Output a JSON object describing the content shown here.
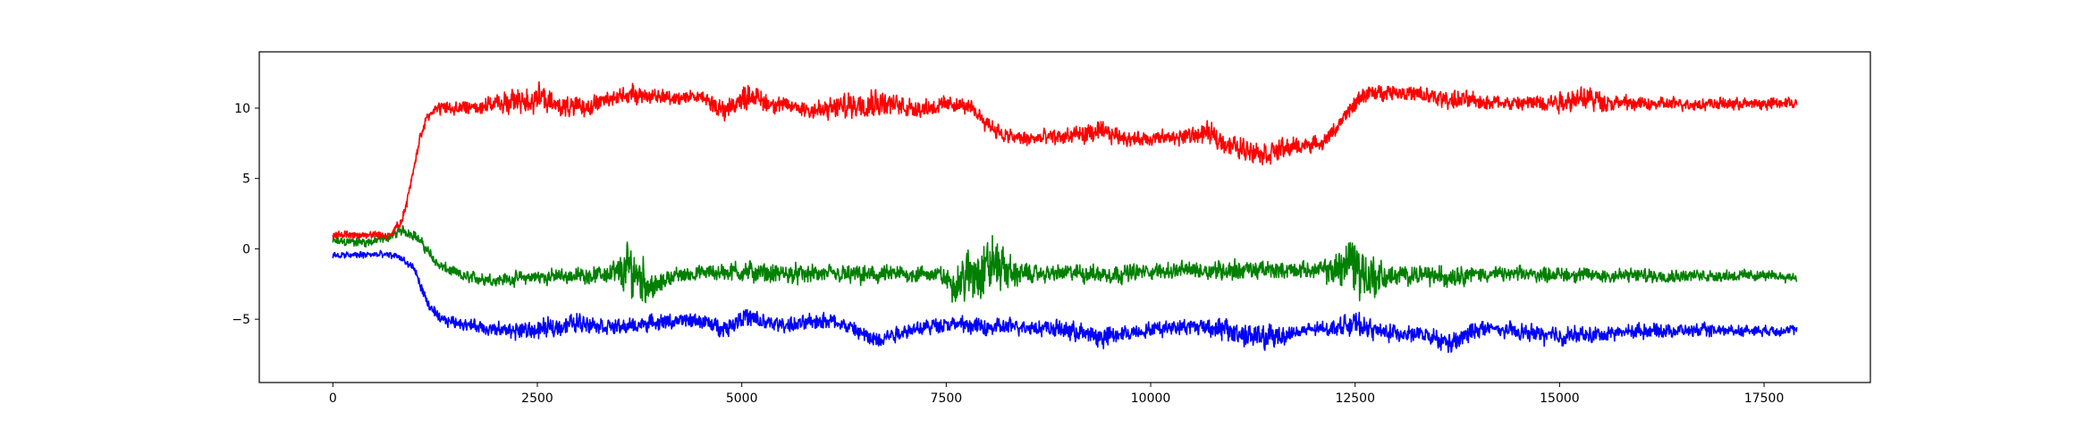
{
  "chart_data": {
    "type": "line",
    "title": "",
    "xlabel": "",
    "ylabel": "",
    "xlim": [
      -900,
      18800
    ],
    "ylim": [
      -9.5,
      14
    ],
    "xticks": [
      0,
      2500,
      5000,
      7500,
      10000,
      12500,
      15000,
      17500
    ],
    "xtick_labels": [
      "0",
      "2500",
      "5000",
      "7500",
      "10000",
      "12500",
      "15000",
      "17500"
    ],
    "yticks": [
      -5,
      0,
      5,
      10
    ],
    "ytick_labels": [
      "−5",
      "0",
      "5",
      "10"
    ],
    "grid": false,
    "legend": "none",
    "series": [
      {
        "color": "#ff0000",
        "x": [
          0,
          400,
          700,
          850,
          950,
          1050,
          1150,
          1300,
          1600,
          2000,
          2300,
          2500,
          2700,
          3000,
          3300,
          3600,
          4000,
          4500,
          4800,
          5100,
          5300,
          5600,
          6000,
          6300,
          6600,
          6900,
          7200,
          7600,
          7800,
          8000,
          8200,
          8500,
          9000,
          9400,
          9800,
          10300,
          10700,
          11000,
          11400,
          11800,
          12100,
          12300,
          12600,
          13000,
          13500,
          14000,
          14500,
          15000,
          15300,
          15600,
          16000,
          16500,
          17000,
          17500,
          17900
        ],
        "values": [
          1.0,
          1.0,
          1.0,
          2.0,
          4.5,
          7.5,
          9.5,
          10.0,
          10.0,
          10.3,
          10.5,
          10.8,
          10.2,
          10.0,
          10.5,
          11.0,
          10.8,
          10.8,
          9.8,
          11.0,
          10.4,
          10.1,
          9.8,
          10.2,
          10.5,
          10.2,
          10.0,
          10.3,
          10.0,
          9.0,
          8.0,
          7.8,
          8.0,
          8.3,
          7.8,
          7.9,
          8.2,
          7.3,
          6.8,
          7.3,
          7.5,
          8.8,
          11.0,
          11.2,
          10.7,
          10.5,
          10.3,
          10.5,
          10.8,
          10.4,
          10.3,
          10.3,
          10.3,
          10.3,
          10.4
        ],
        "noise": [
          0.35,
          0.35,
          0.35,
          0.4,
          0.4,
          0.4,
          0.5,
          0.55,
          0.6,
          0.7,
          1.1,
          1.3,
          0.8,
          0.8,
          0.7,
          0.8,
          0.6,
          0.6,
          0.9,
          1.0,
          0.8,
          0.6,
          0.9,
          1.1,
          1.2,
          0.9,
          0.8,
          0.6,
          0.6,
          0.7,
          0.7,
          0.6,
          0.8,
          0.8,
          0.6,
          0.6,
          0.9,
          0.9,
          1.0,
          0.7,
          0.5,
          0.6,
          0.7,
          0.6,
          0.8,
          0.7,
          0.6,
          0.9,
          1.0,
          0.7,
          0.5,
          0.5,
          0.5,
          0.5,
          0.5
        ]
      },
      {
        "color": "#008000",
        "x": [
          0,
          500,
          700,
          850,
          1000,
          1100,
          1300,
          1600,
          2000,
          2500,
          3000,
          3300,
          3500,
          3650,
          3800,
          3950,
          4100,
          4500,
          5000,
          5400,
          6000,
          6500,
          7000,
          7400,
          7600,
          7850,
          8100,
          8300,
          8600,
          9000,
          9500,
          10000,
          10500,
          11000,
          11500,
          12000,
          12200,
          12450,
          12650,
          12900,
          13200,
          13600,
          13800,
          14000,
          14500,
          15000,
          15500,
          16000,
          16500,
          17000,
          17500,
          17900
        ],
        "values": [
          0.5,
          0.5,
          0.9,
          1.3,
          1.0,
          0.3,
          -1.2,
          -2.0,
          -2.2,
          -2.0,
          -1.9,
          -1.8,
          -1.8,
          -1.4,
          -2.2,
          -2.8,
          -2.0,
          -1.7,
          -1.6,
          -1.8,
          -1.8,
          -1.9,
          -1.8,
          -1.8,
          -2.5,
          -1.6,
          -1.0,
          -1.7,
          -1.8,
          -1.7,
          -1.8,
          -1.6,
          -1.5,
          -1.5,
          -1.5,
          -1.5,
          -1.6,
          -0.8,
          -2.0,
          -2.0,
          -1.8,
          -2.0,
          -1.8,
          -1.8,
          -1.8,
          -1.8,
          -1.9,
          -1.9,
          -1.9,
          -1.9,
          -1.9,
          -2.0
        ],
        "noise": [
          0.4,
          0.4,
          0.4,
          0.4,
          0.4,
          0.4,
          0.45,
          0.5,
          0.5,
          0.6,
          0.6,
          0.6,
          1.4,
          2.6,
          1.8,
          0.9,
          0.6,
          0.6,
          0.9,
          0.8,
          0.7,
          0.8,
          0.7,
          0.6,
          1.3,
          2.6,
          2.4,
          1.2,
          0.6,
          0.7,
          0.8,
          0.6,
          0.7,
          0.9,
          0.7,
          0.6,
          1.1,
          2.6,
          2.2,
          0.9,
          0.7,
          0.9,
          0.8,
          0.6,
          0.6,
          0.6,
          0.6,
          0.6,
          0.5,
          0.5,
          0.4,
          0.4
        ]
      },
      {
        "color": "#0000ff",
        "x": [
          0,
          500,
          800,
          1000,
          1150,
          1300,
          1600,
          2000,
          2500,
          3000,
          3500,
          4000,
          4500,
          4800,
          5000,
          5300,
          5700,
          6000,
          6300,
          6600,
          7000,
          7500,
          8000,
          8500,
          9000,
          9400,
          9800,
          10300,
          10700,
          11000,
          11400,
          11800,
          12200,
          12500,
          12800,
          13300,
          13700,
          14000,
          14500,
          15000,
          15500,
          16000,
          16500,
          17000,
          17500,
          17900
        ],
        "values": [
          -0.5,
          -0.4,
          -0.5,
          -1.5,
          -3.8,
          -5.0,
          -5.3,
          -5.8,
          -5.8,
          -5.2,
          -5.6,
          -5.2,
          -5.1,
          -5.7,
          -4.8,
          -5.3,
          -5.4,
          -5.0,
          -5.5,
          -6.5,
          -5.8,
          -5.3,
          -5.6,
          -5.5,
          -5.8,
          -6.3,
          -5.9,
          -5.5,
          -5.5,
          -5.9,
          -6.4,
          -5.9,
          -5.6,
          -5.3,
          -5.9,
          -6.1,
          -6.8,
          -5.6,
          -5.9,
          -6.2,
          -6.1,
          -5.8,
          -5.8,
          -5.8,
          -5.8,
          -5.8
        ],
        "noise": [
          0.3,
          0.3,
          0.3,
          0.4,
          0.4,
          0.45,
          0.5,
          0.6,
          0.8,
          0.8,
          0.6,
          0.6,
          0.6,
          0.7,
          0.9,
          0.7,
          0.6,
          0.8,
          0.6,
          0.8,
          0.6,
          0.6,
          0.7,
          0.6,
          0.8,
          0.9,
          0.6,
          0.6,
          0.8,
          1.0,
          1.1,
          0.6,
          0.6,
          0.9,
          0.7,
          0.6,
          0.9,
          0.7,
          0.6,
          0.8,
          0.6,
          0.6,
          0.5,
          0.5,
          0.4,
          0.4
        ]
      }
    ]
  }
}
